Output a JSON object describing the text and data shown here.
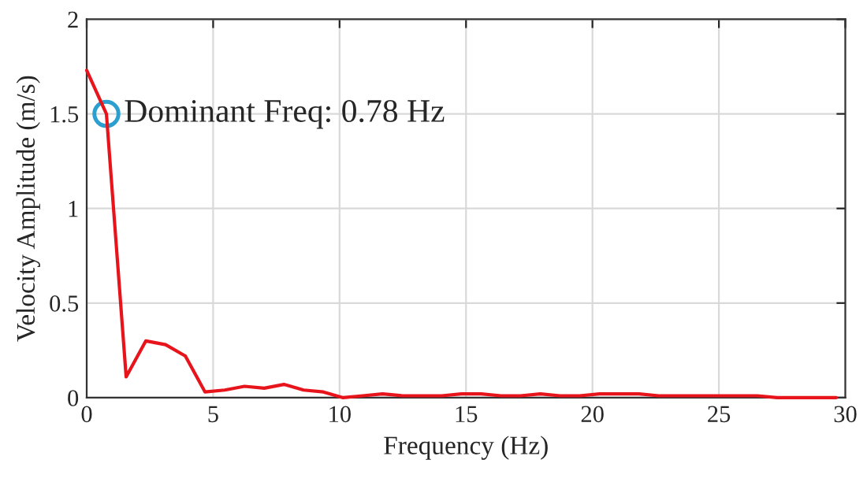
{
  "chart_data": {
    "type": "line",
    "xlabel": "Frequency (Hz)",
    "ylabel": "Velocity Amplitude (m/s)",
    "series": [
      {
        "color": "#e8141c",
        "x": [
          0,
          0.78,
          1.56,
          2.34,
          3.12,
          3.9,
          4.68,
          5.46,
          6.24,
          7.02,
          7.8,
          8.58,
          9.36,
          10.14,
          10.92,
          11.7,
          12.48,
          13.26,
          14.04,
          14.82,
          15.6,
          16.38,
          17.16,
          17.94,
          18.72,
          19.5,
          20.28,
          21.06,
          21.84,
          22.62,
          23.4,
          24.18,
          24.96,
          25.74,
          26.52,
          27.3,
          28.08,
          28.86,
          29.64
        ],
        "values": [
          1.73,
          1.5,
          0.11,
          0.3,
          0.28,
          0.22,
          0.03,
          0.04,
          0.06,
          0.05,
          0.07,
          0.04,
          0.03,
          0.0,
          0.01,
          0.02,
          0.01,
          0.01,
          0.01,
          0.02,
          0.02,
          0.01,
          0.01,
          0.02,
          0.01,
          0.01,
          0.02,
          0.02,
          0.02,
          0.01,
          0.01,
          0.01,
          0.01,
          0.01,
          0.01,
          0.0,
          0.0,
          0.0,
          0.0
        ]
      }
    ],
    "annotations": [
      {
        "text": "Dominant Freq: 0.78 Hz",
        "x": 0.78,
        "y": 1.5
      }
    ],
    "xlim": [
      0,
      30
    ],
    "xticks": [
      0,
      5,
      10,
      15,
      20,
      25,
      30
    ],
    "ylim": [
      0,
      2
    ],
    "yticks": [
      0,
      0.5,
      1,
      1.5,
      2
    ],
    "grid": true,
    "marker": "none",
    "line_style": "solid"
  }
}
